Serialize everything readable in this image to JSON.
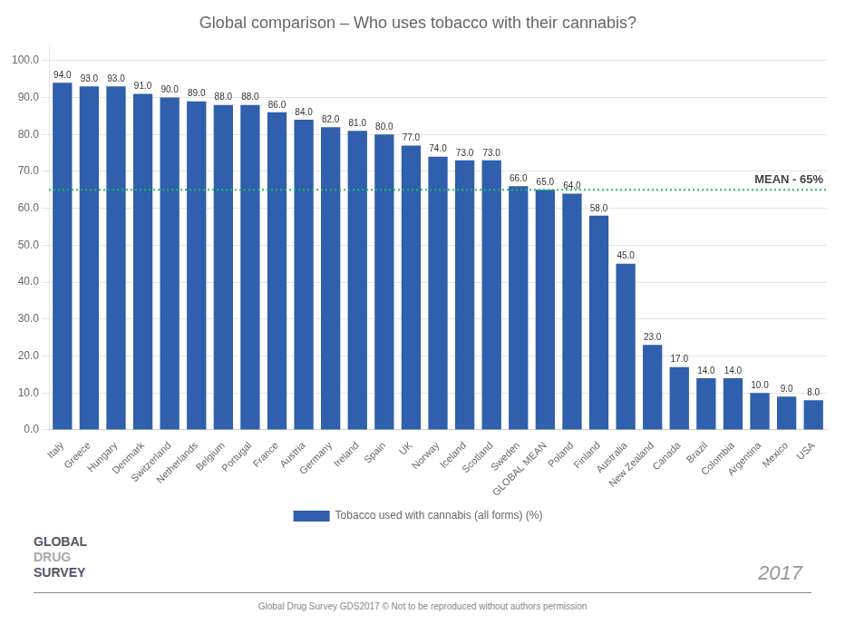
{
  "chart_data": {
    "type": "bar",
    "title": "Global comparison – Who uses tobacco with their cannabis?",
    "categories": [
      "Italy",
      "Greece",
      "Hungary",
      "Denmark",
      "Switzerland",
      "Netherlands",
      "Belgium",
      "Portugal",
      "France",
      "Austria",
      "Germany",
      "Ireland",
      "Spain",
      "UK",
      "Norway",
      "Iceland",
      "Scotland",
      "Sweden",
      "GLOBAL MEAN",
      "Poland",
      "Finland",
      "Australia",
      "New Zealand",
      "Canada",
      "Brazil",
      "Colombia",
      "Argentina",
      "Mexico",
      "USA"
    ],
    "series": [
      {
        "name": "Tobacco used with cannabis (all forms) (%)",
        "color": "#2f5fad",
        "values": [
          94.0,
          93.0,
          93.0,
          91.0,
          90.0,
          89.0,
          88.0,
          88.0,
          86.0,
          84.0,
          82.0,
          81.0,
          80.0,
          77.0,
          74.0,
          73.0,
          73.0,
          66.0,
          65.0,
          64.0,
          58.0,
          45.0,
          23.0,
          17.0,
          14.0,
          14.0,
          10.0,
          9.0,
          8.0
        ],
        "value_labels": [
          "94.0",
          "93.0",
          "93.0",
          "91.0",
          "90.0",
          "89.0",
          "88.0",
          "88.0",
          "86.0",
          "84.0",
          "82.0",
          "81.0",
          "80.0",
          "77.0",
          "74.0",
          "73.0",
          "73.0",
          "66.0",
          "65.0",
          "64.0",
          "58.0",
          "45.0",
          "23.0",
          "17.0",
          "14.0",
          "14.0",
          "10.0",
          "9.0",
          "8.0"
        ]
      }
    ],
    "data_labels": true,
    "ylim": [
      0,
      104
    ],
    "yticks": [
      {
        "value": 0,
        "label": "0.0"
      },
      {
        "value": 10,
        "label": "10.0"
      },
      {
        "value": 20,
        "label": "20.0"
      },
      {
        "value": 30,
        "label": "30.0"
      },
      {
        "value": 40,
        "label": "40.0"
      },
      {
        "value": 50,
        "label": "50.0"
      },
      {
        "value": 60,
        "label": "60.0"
      },
      {
        "value": 70,
        "label": "70.0"
      },
      {
        "value": 80,
        "label": "80.0"
      },
      {
        "value": 90,
        "label": "90.0"
      },
      {
        "value": 100,
        "label": "100.0"
      }
    ],
    "grid": true,
    "legend": "bottom",
    "annotations": [
      {
        "text": "MEAN - 65%",
        "y": 65,
        "color": "#22bb55"
      }
    ],
    "logo_text": [
      "GLOBAL",
      "DRUG",
      "SURVEY"
    ],
    "year_text": "2017",
    "footer": "Global Drug Survey GDS2017 © Not to be reproduced without authors permission"
  }
}
